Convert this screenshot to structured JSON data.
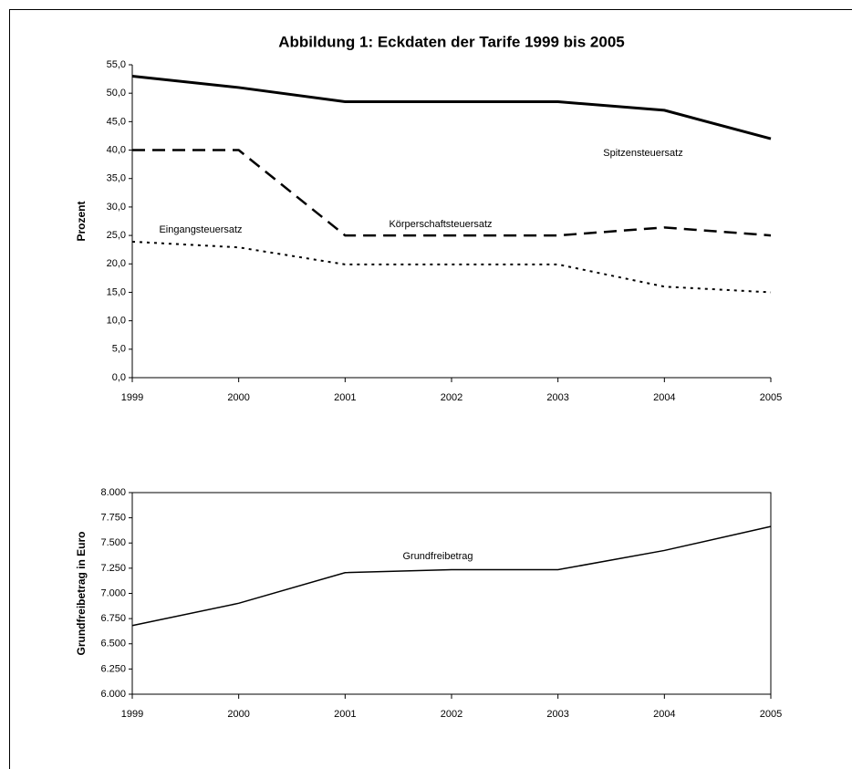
{
  "chart_data": [
    {
      "type": "line",
      "title": "Abbildung 1: Eckdaten der Tarife 1999 bis 2005",
      "y_label": "Prozent",
      "categories": [
        "1999",
        "2000",
        "2001",
        "2002",
        "2003",
        "2004",
        "2005"
      ],
      "ylim": [
        0,
        55
      ],
      "yticks": [
        {
          "value": 0,
          "label": "0,0"
        },
        {
          "value": 5,
          "label": "5,0"
        },
        {
          "value": 10,
          "label": "10,0"
        },
        {
          "value": 15,
          "label": "15,0"
        },
        {
          "value": 20,
          "label": "20,0"
        },
        {
          "value": 25,
          "label": "25,0"
        },
        {
          "value": 30,
          "label": "30,0"
        },
        {
          "value": 35,
          "label": "35,0"
        },
        {
          "value": 40,
          "label": "40,0"
        },
        {
          "value": 45,
          "label": "45,0"
        },
        {
          "value": 50,
          "label": "50,0"
        },
        {
          "value": 55,
          "label": "55,0"
        }
      ],
      "series": [
        {
          "name": "Spitzensteuersatz",
          "color": "#000000",
          "style": "solid",
          "values": [
            53,
            51,
            48.5,
            48.5,
            48.5,
            47,
            42
          ]
        },
        {
          "name": "Körperschaftsteuersatz",
          "color": "#000000",
          "style": "dashed",
          "values": [
            40,
            40,
            25,
            25,
            25,
            26.4,
            25
          ]
        },
        {
          "name": "Eingangsteuersatz",
          "color": "#000000",
          "style": "dotted",
          "values": [
            23.9,
            22.9,
            19.9,
            19.9,
            19.9,
            16,
            15
          ]
        }
      ]
    },
    {
      "type": "line",
      "y_label": "Grundfreibetrag in Euro",
      "categories": [
        "1999",
        "2000",
        "2001",
        "2002",
        "2003",
        "2004",
        "2005"
      ],
      "ylim": [
        6000,
        8000
      ],
      "yticks": [
        {
          "value": 6000,
          "label": "6.000"
        },
        {
          "value": 6250,
          "label": "6.250"
        },
        {
          "value": 6500,
          "label": "6.500"
        },
        {
          "value": 6750,
          "label": "6.750"
        },
        {
          "value": 7000,
          "label": "7.000"
        },
        {
          "value": 7250,
          "label": "7.250"
        },
        {
          "value": 7500,
          "label": "7.500"
        },
        {
          "value": 7750,
          "label": "7.750"
        },
        {
          "value": 8000,
          "label": "8.000"
        }
      ],
      "series": [
        {
          "name": "Grundfreibetrag",
          "color": "#000000",
          "style": "solid",
          "values": [
            6681,
            6902,
            7206,
            7235,
            7235,
            7426,
            7664
          ]
        }
      ]
    }
  ]
}
